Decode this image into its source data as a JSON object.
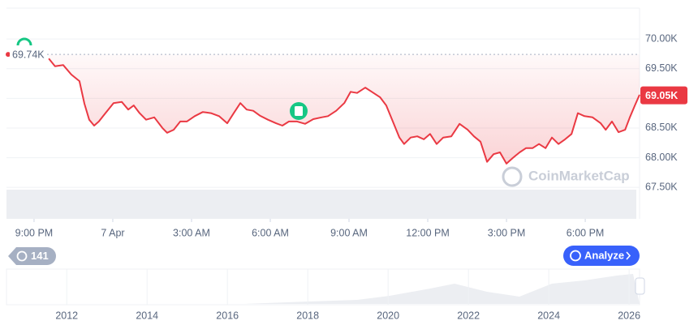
{
  "chart_data": {
    "type": "line",
    "x": [
      0.56,
      0.8,
      1.11,
      1.42,
      1.73,
      1.92,
      2.1,
      2.29,
      2.47,
      2.72,
      3.03,
      3.34,
      3.59,
      3.8,
      4.02,
      4.27,
      4.58,
      4.89,
      5.07,
      5.32,
      5.57,
      5.82,
      6.12,
      6.43,
      6.74,
      7.05,
      7.36,
      7.61,
      7.86,
      8.1,
      8.35,
      8.6,
      8.91,
      9.22,
      9.46,
      9.71,
      10.02,
      10.33,
      10.64,
      10.95,
      11.2,
      11.51,
      11.82,
      12.06,
      12.31,
      12.62,
      12.87,
      13.18,
      13.42,
      13.67,
      13.92,
      14.1,
      14.35,
      14.6,
      14.85,
      15.09,
      15.34,
      15.59,
      15.9,
      16.21,
      16.52,
      16.76,
      17.01,
      17.26,
      17.51,
      17.75,
      18.0,
      18.25,
      18.5,
      18.74,
      18.99,
      19.24,
      19.49,
      19.73,
      19.98,
      20.23,
      20.48,
      20.72,
      20.97,
      21.28,
      21.59,
      21.78,
      22.02,
      22.27,
      22.52,
      22.7,
      22.89,
      23.07
    ],
    "series": [
      {
        "color": "#ea3943",
        "values": [
          69670,
          69540,
          69560,
          69400,
          69290,
          68910,
          68640,
          68540,
          68610,
          68750,
          68920,
          68940,
          68810,
          68880,
          68750,
          68640,
          68680,
          68500,
          68420,
          68470,
          68610,
          68610,
          68700,
          68770,
          68750,
          68700,
          68580,
          68750,
          68920,
          68810,
          68790,
          68710,
          68640,
          68580,
          68540,
          68610,
          68610,
          68570,
          68650,
          68680,
          68700,
          68790,
          68920,
          69110,
          69090,
          69180,
          69110,
          69020,
          68880,
          68610,
          68340,
          68230,
          68340,
          68360,
          68310,
          68400,
          68230,
          68340,
          68360,
          68570,
          68470,
          68360,
          68270,
          67930,
          68060,
          68090,
          67900,
          68000,
          68090,
          68160,
          68160,
          68230,
          68160,
          68340,
          68230,
          68310,
          68400,
          68750,
          68700,
          68680,
          68580,
          68470,
          68610,
          68430,
          68470,
          68680,
          68880,
          69060
        ]
      }
    ],
    "xlim": [
      -1.05,
      23.07
    ],
    "xticks": [
      {
        "value": 0,
        "label": "9:00 PM"
      },
      {
        "value": 3,
        "label": "7 Apr"
      },
      {
        "value": 6,
        "label": "3:00 AM"
      },
      {
        "value": 9,
        "label": "6:00 AM"
      },
      {
        "value": 12,
        "label": "9:00 AM"
      },
      {
        "value": 15,
        "label": "12:00 PM"
      },
      {
        "value": 18,
        "label": "3:00 PM"
      },
      {
        "value": 21,
        "label": "6:00 PM"
      }
    ],
    "ylim": [
      66970,
      70520
    ],
    "yticks": [
      {
        "value": 70000,
        "label": "70.00K"
      },
      {
        "value": 69500,
        "label": "69.50K"
      },
      {
        "value": 69000,
        "label": "69.00K"
      },
      {
        "value": 68500,
        "label": "68.50K"
      },
      {
        "value": 68000,
        "label": "68.00K"
      },
      {
        "value": 67500,
        "label": "67.50K"
      }
    ],
    "grid": true,
    "reference": {
      "value": 69740,
      "label": "69.74K"
    },
    "last": {
      "value": 69050,
      "label": "69.05K"
    },
    "watermark": "CoinMarketCap",
    "badge": "141",
    "button": "Analyze",
    "navigator": {
      "xlim": [
        2010.5,
        2026.26
      ],
      "xticks": [
        2012,
        2014,
        2016,
        2018,
        2020,
        2022,
        2024,
        2026
      ]
    }
  }
}
